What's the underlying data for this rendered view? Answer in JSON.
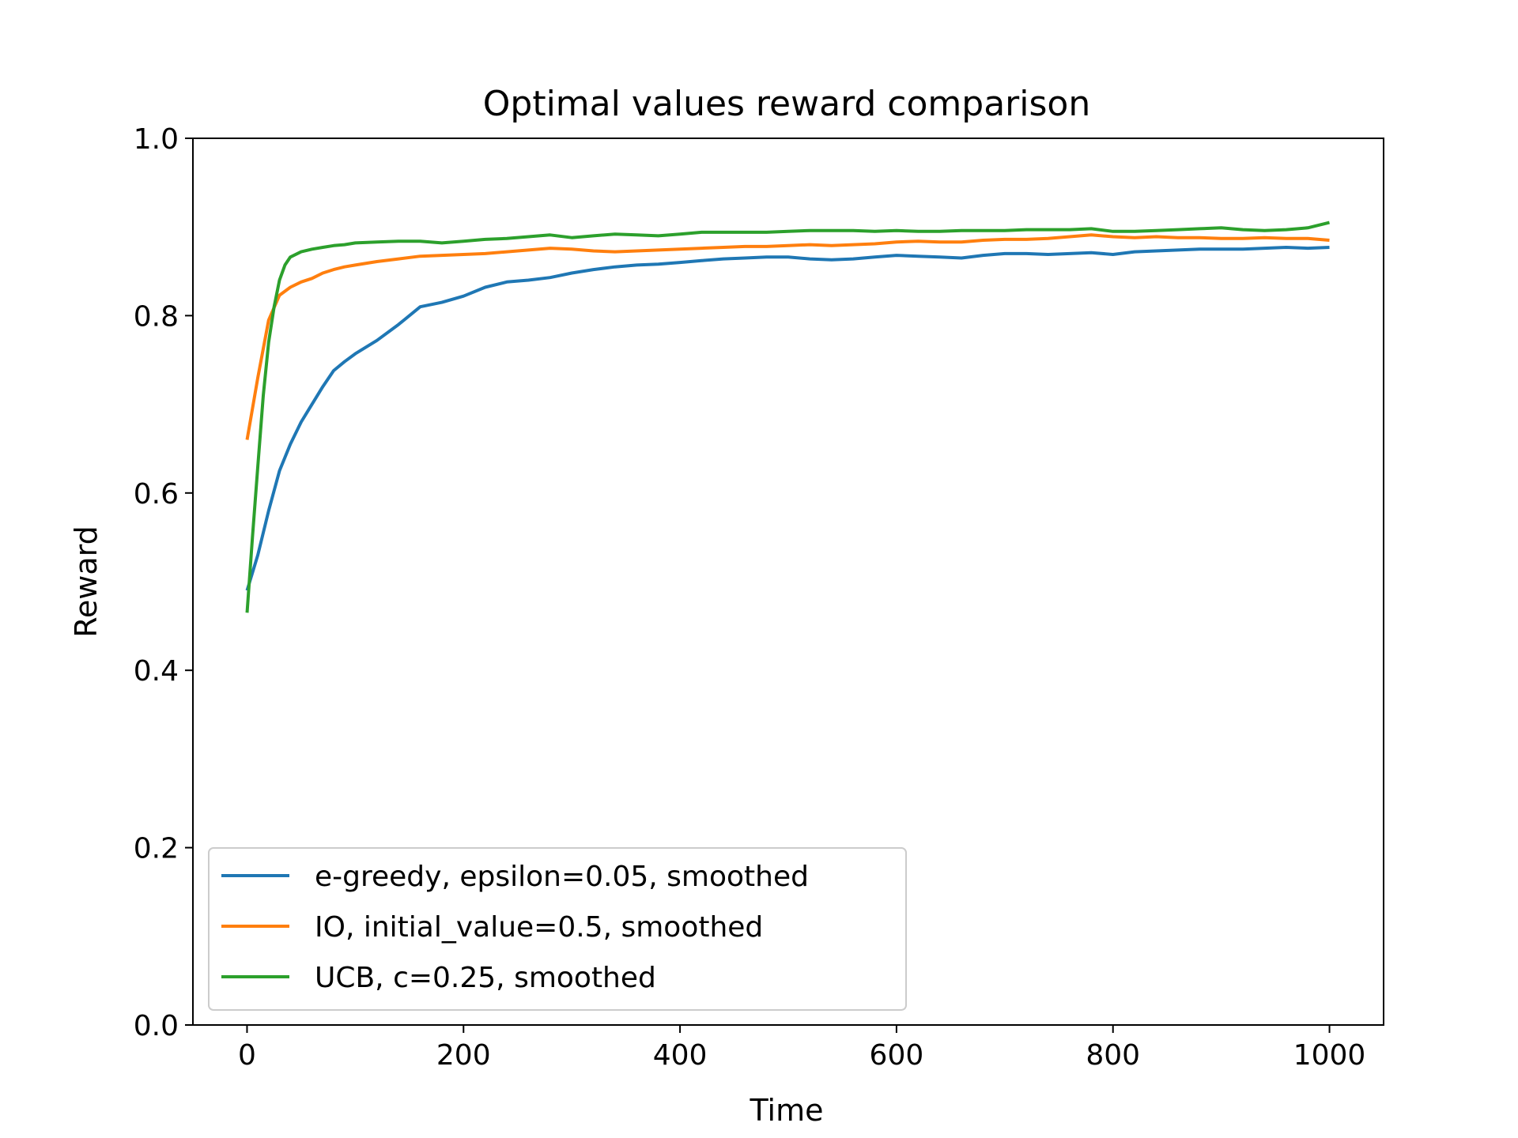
{
  "chart_data": {
    "type": "line",
    "title": "Optimal values reward comparison",
    "xlabel": "Time",
    "ylabel": "Reward",
    "xlim": [
      -50,
      1050
    ],
    "ylim": [
      0.0,
      1.0
    ],
    "xticks": [
      "0",
      "200",
      "400",
      "600",
      "800",
      "1000"
    ],
    "yticks": [
      "0.0",
      "0.2",
      "0.4",
      "0.6",
      "0.8",
      "1.0"
    ],
    "grid": false,
    "legend_position": "lower-left",
    "series": [
      {
        "name": "e-greedy, epsilon=0.05, smoothed",
        "color": "#1f77b4",
        "x": [
          0,
          10,
          20,
          30,
          40,
          50,
          60,
          70,
          80,
          90,
          100,
          120,
          140,
          160,
          180,
          200,
          220,
          240,
          260,
          280,
          300,
          320,
          340,
          360,
          380,
          400,
          420,
          440,
          460,
          480,
          500,
          520,
          540,
          560,
          580,
          600,
          620,
          640,
          660,
          680,
          700,
          720,
          740,
          760,
          780,
          800,
          820,
          840,
          860,
          880,
          900,
          920,
          940,
          960,
          980,
          1000
        ],
        "y": [
          0.49,
          0.53,
          0.58,
          0.625,
          0.655,
          0.68,
          0.7,
          0.72,
          0.738,
          0.748,
          0.757,
          0.772,
          0.79,
          0.81,
          0.815,
          0.822,
          0.832,
          0.838,
          0.84,
          0.843,
          0.848,
          0.852,
          0.855,
          0.857,
          0.858,
          0.86,
          0.862,
          0.864,
          0.865,
          0.866,
          0.866,
          0.864,
          0.863,
          0.864,
          0.866,
          0.868,
          0.867,
          0.866,
          0.865,
          0.868,
          0.87,
          0.87,
          0.869,
          0.87,
          0.871,
          0.869,
          0.872,
          0.873,
          0.874,
          0.875,
          0.875,
          0.875,
          0.876,
          0.877,
          0.876,
          0.877
        ]
      },
      {
        "name": "IO, initial_value=0.5, smoothed",
        "color": "#ff7f0e",
        "x": [
          0,
          10,
          20,
          30,
          40,
          50,
          60,
          70,
          80,
          90,
          100,
          120,
          140,
          160,
          180,
          200,
          220,
          240,
          260,
          280,
          300,
          320,
          340,
          360,
          380,
          400,
          420,
          440,
          460,
          480,
          500,
          520,
          540,
          560,
          580,
          600,
          620,
          640,
          660,
          680,
          700,
          720,
          740,
          760,
          780,
          800,
          820,
          840,
          860,
          880,
          900,
          920,
          940,
          960,
          980,
          1000
        ],
        "y": [
          0.66,
          0.73,
          0.795,
          0.823,
          0.832,
          0.838,
          0.842,
          0.848,
          0.852,
          0.855,
          0.857,
          0.861,
          0.864,
          0.867,
          0.868,
          0.869,
          0.87,
          0.872,
          0.874,
          0.876,
          0.875,
          0.873,
          0.872,
          0.873,
          0.874,
          0.875,
          0.876,
          0.877,
          0.878,
          0.878,
          0.879,
          0.88,
          0.879,
          0.88,
          0.881,
          0.883,
          0.884,
          0.883,
          0.883,
          0.885,
          0.886,
          0.886,
          0.887,
          0.889,
          0.891,
          0.889,
          0.888,
          0.889,
          0.888,
          0.888,
          0.887,
          0.887,
          0.888,
          0.887,
          0.887,
          0.885
        ]
      },
      {
        "name": "UCB, c=0.25, smoothed",
        "color": "#2ca02c",
        "x": [
          0,
          5,
          10,
          15,
          20,
          25,
          30,
          35,
          40,
          50,
          60,
          70,
          80,
          90,
          100,
          120,
          140,
          160,
          180,
          200,
          220,
          240,
          260,
          280,
          300,
          320,
          340,
          360,
          380,
          400,
          420,
          440,
          460,
          480,
          500,
          520,
          540,
          560,
          580,
          600,
          620,
          640,
          660,
          680,
          700,
          720,
          740,
          760,
          780,
          800,
          820,
          840,
          860,
          880,
          900,
          920,
          940,
          960,
          980,
          1000
        ],
        "y": [
          0.465,
          0.55,
          0.63,
          0.71,
          0.77,
          0.81,
          0.84,
          0.857,
          0.866,
          0.872,
          0.875,
          0.877,
          0.879,
          0.88,
          0.882,
          0.883,
          0.884,
          0.884,
          0.882,
          0.884,
          0.886,
          0.887,
          0.889,
          0.891,
          0.888,
          0.89,
          0.892,
          0.891,
          0.89,
          0.892,
          0.894,
          0.894,
          0.894,
          0.894,
          0.895,
          0.896,
          0.896,
          0.896,
          0.895,
          0.896,
          0.895,
          0.895,
          0.896,
          0.896,
          0.896,
          0.897,
          0.897,
          0.897,
          0.898,
          0.895,
          0.895,
          0.896,
          0.897,
          0.898,
          0.899,
          0.897,
          0.896,
          0.897,
          0.899,
          0.905
        ]
      }
    ]
  }
}
